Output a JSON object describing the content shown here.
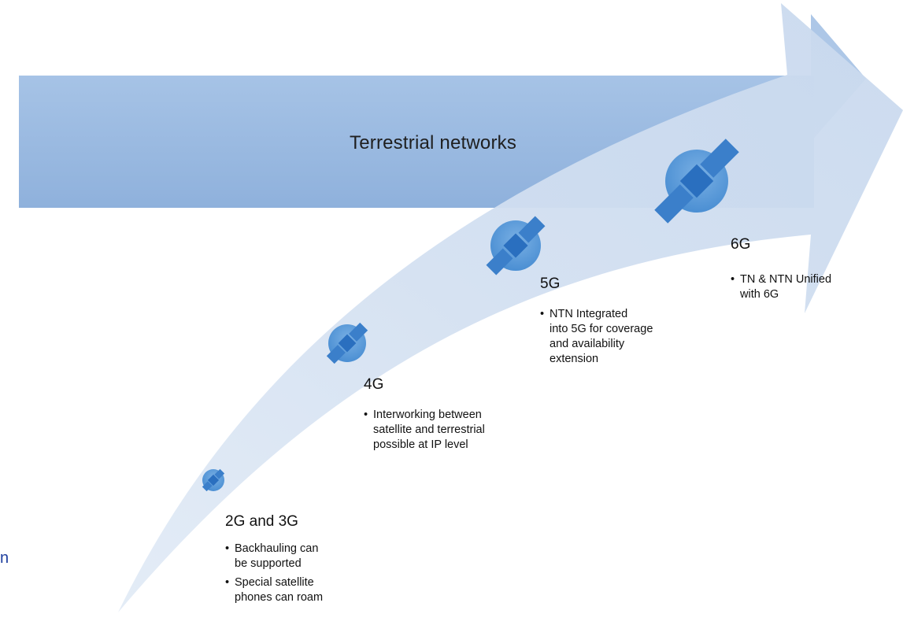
{
  "colors": {
    "banner_fill": "#a9c6e8",
    "banner_fill_dark": "#8fb3de",
    "curve_fill": "#d5e1f1",
    "curve_fill_edge": "#e6eef8",
    "satellite_halo": "#5b9bd8",
    "satellite_body": "#2e75c3",
    "satellite_panel": "#3b7fca",
    "edge_glyph": "#1f3f9f"
  },
  "banner": {
    "label": "Terrestrial networks"
  },
  "generations": [
    {
      "title": "2G and 3G",
      "bullets": [
        "Backhauling can\nbe supported",
        "Special satellite\nphones can roam"
      ],
      "icon": "satellite-icon"
    },
    {
      "title": "4G",
      "bullets": [
        "Interworking between\nsatellite and terrestrial\npossible at IP level"
      ],
      "icon": "satellite-icon"
    },
    {
      "title": "5G",
      "bullets": [
        "NTN Integrated\ninto 5G for coverage\nand availability\nextension"
      ],
      "icon": "satellite-icon"
    },
    {
      "title": "6G",
      "bullets": [
        "TN & NTN Unified\nwith 6G"
      ],
      "icon": "satellite-icon"
    }
  ],
  "edge_fragment": "n"
}
